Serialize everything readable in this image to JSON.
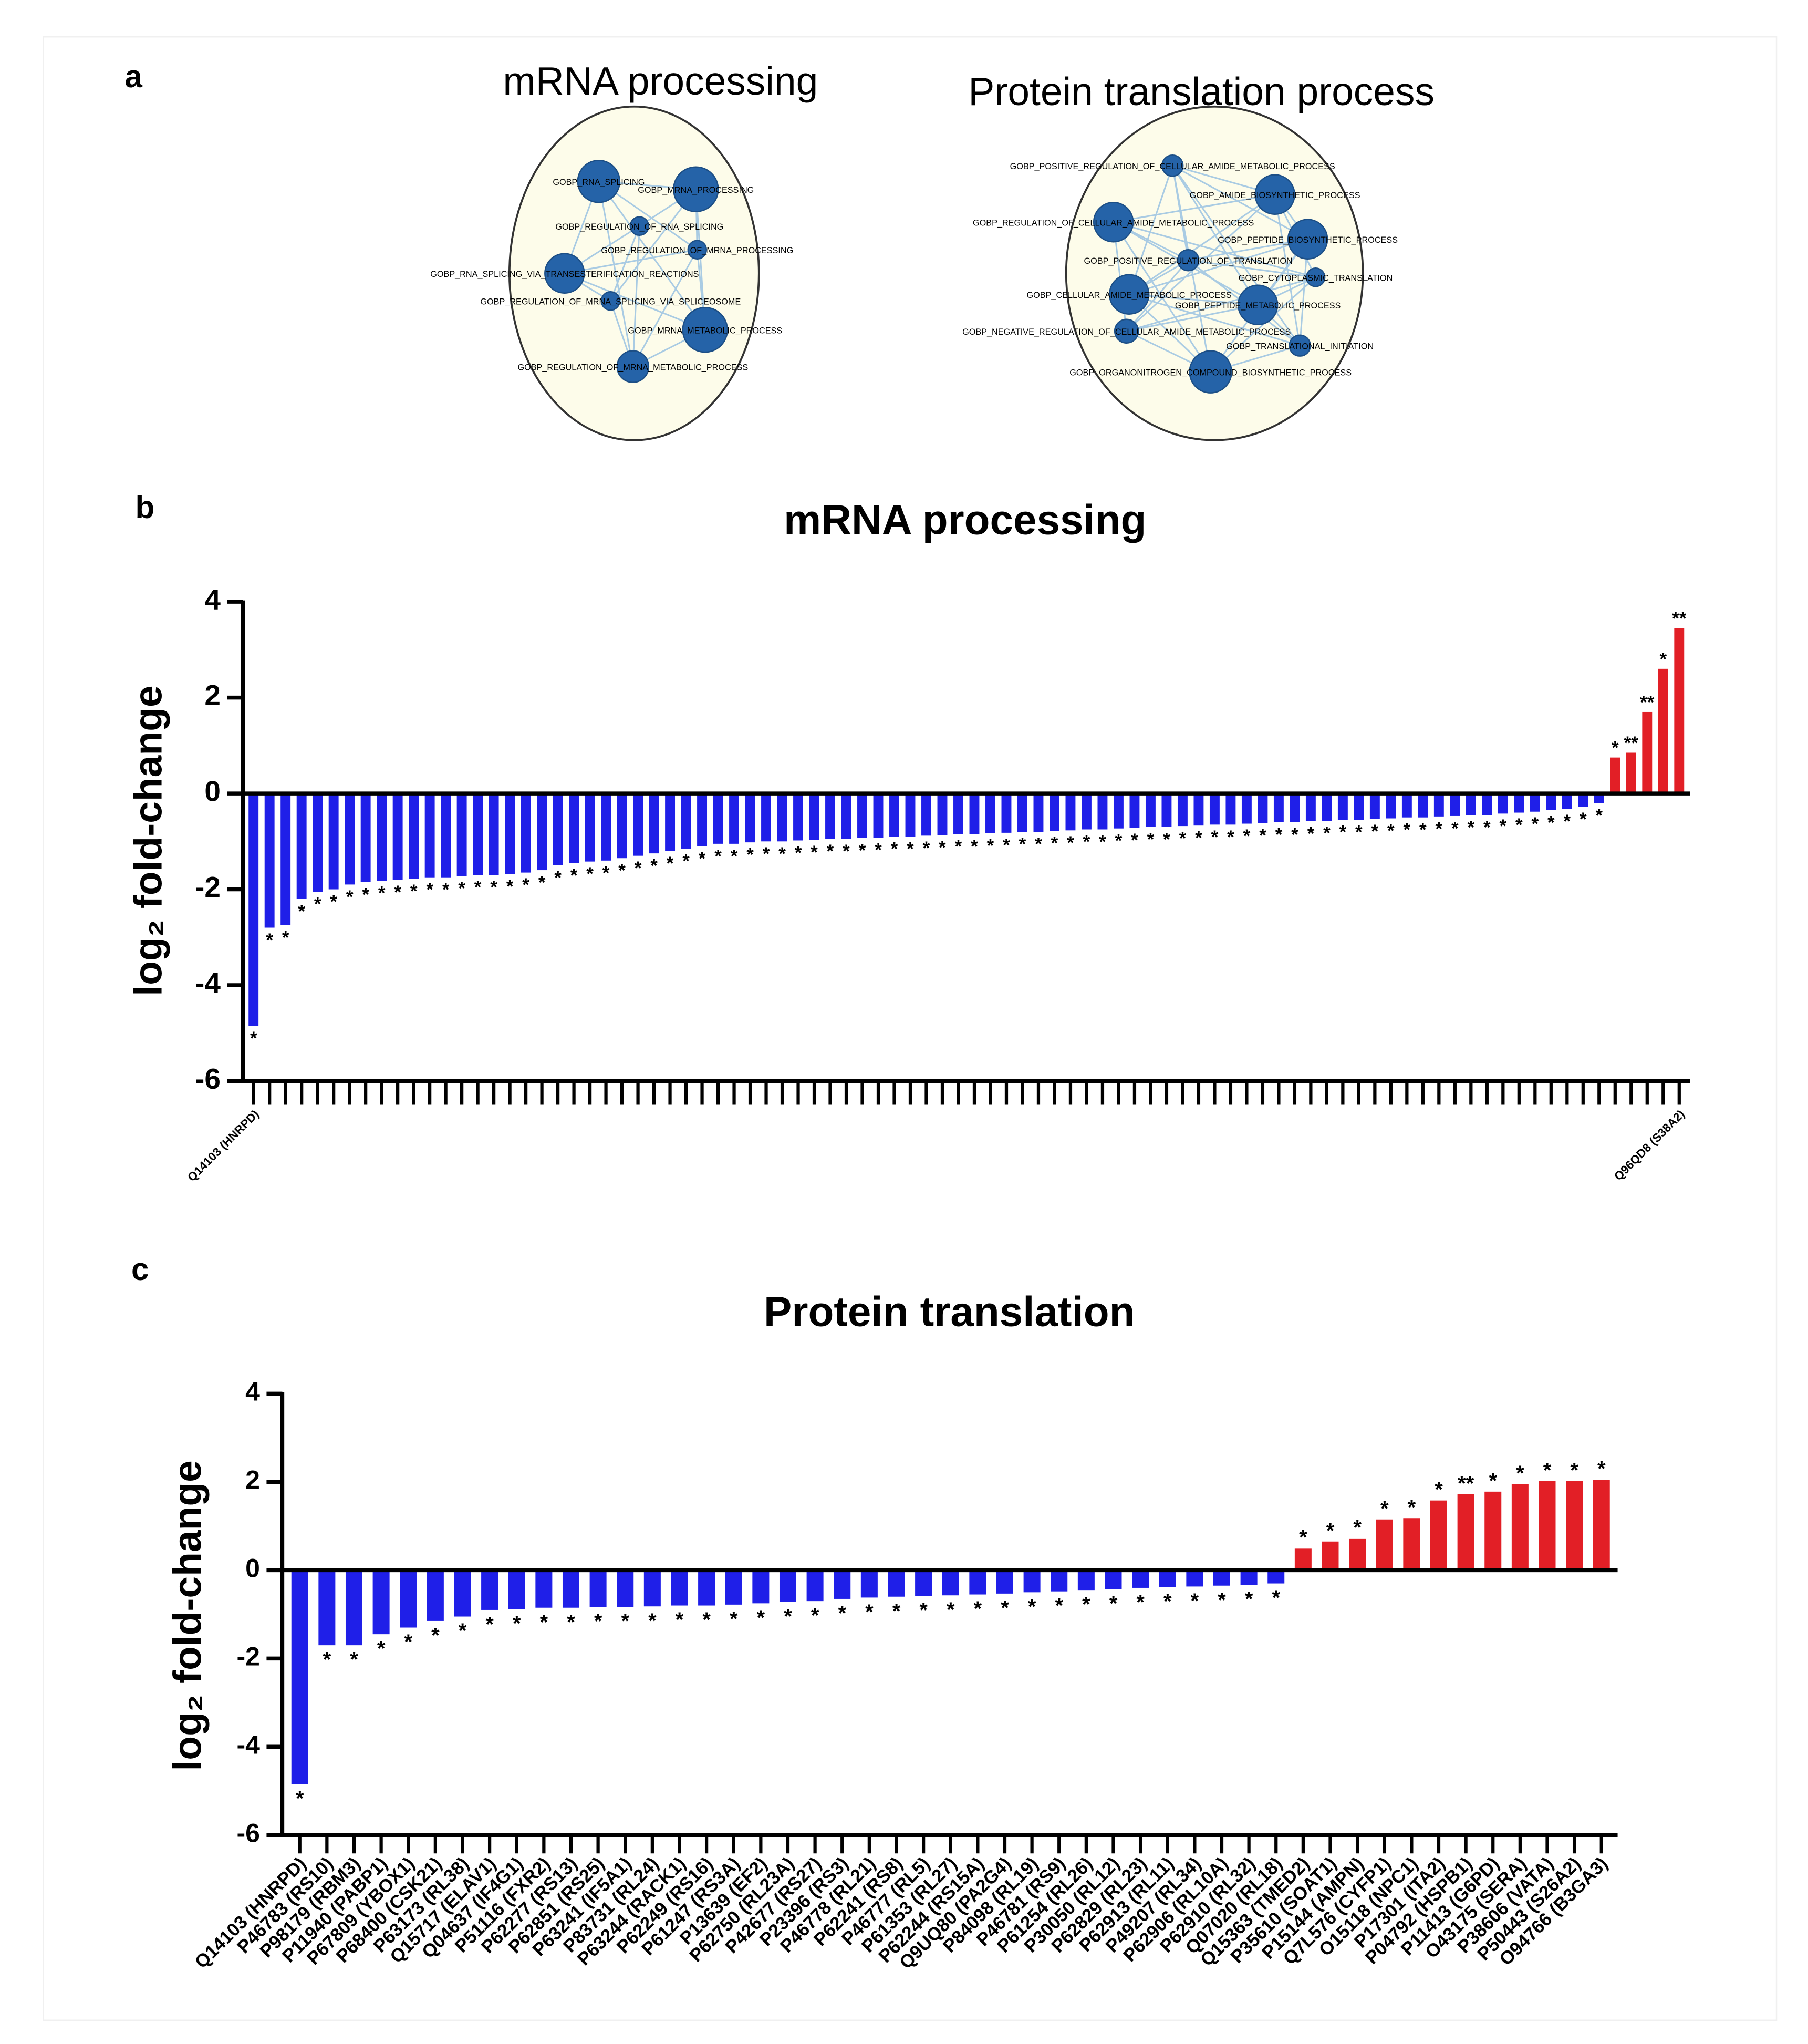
{
  "panel_labels": [
    "a",
    "b",
    "c"
  ],
  "networks": [
    {
      "title": "mRNA processing",
      "nodes": [
        {
          "label": "GOBP_RNA_SPLICING"
        },
        {
          "label": "GOBP_MRNA_PROCESSING"
        },
        {
          "label": "GOBP_REGULATION_OF_RNA_SPLICING"
        },
        {
          "label": "GOBP_REGULATION_OF_MRNA_PROCESSING"
        },
        {
          "label": "GOBP_RNA_SPLICING_VIA_TRANSESTERIFICATION_REACTIONS"
        },
        {
          "label": "GOBP_REGULATION_OF_MRNA_SPLICING_VIA_SPLICEOSOME"
        },
        {
          "label": "GOBP_MRNA_METABOLIC_PROCESS"
        },
        {
          "label": "GOBP_REGULATION_OF_MRNA_METABOLIC_PROCESS"
        }
      ]
    },
    {
      "title": "Protein translation process",
      "nodes": [
        {
          "label": "GOBP_POSITIVE_REGULATION_OF_CELLULAR_AMIDE_METABOLIC_PROCESS"
        },
        {
          "label": "GOBP_AMIDE_BIOSYNTHETIC_PROCESS"
        },
        {
          "label": "GOBP_REGULATION_OF_CELLULAR_AMIDE_METABOLIC_PROCESS"
        },
        {
          "label": "GOBP_PEPTIDE_BIOSYNTHETIC_PROCESS"
        },
        {
          "label": "GOBP_POSITIVE_REGULATION_OF_TRANSLATION"
        },
        {
          "label": "GOBP_CYTOPLASMIC_TRANSLATION"
        },
        {
          "label": "GOBP_CELLULAR_AMIDE_METABOLIC_PROCESS"
        },
        {
          "label": "GOBP_PEPTIDE_METABOLIC_PROCESS"
        },
        {
          "label": "GOBP_NEGATIVE_REGULATION_OF_CELLULAR_AMIDE_METABOLIC_PROCESS"
        },
        {
          "label": "GOBP_TRANSLATIONAL_INITIATION"
        },
        {
          "label": "GOBP_ORGANONITROGEN_COMPOUND_BIOSYNTHETIC_PROCESS"
        }
      ]
    }
  ],
  "chart_data": [
    {
      "type": "bar",
      "title": "mRNA processing",
      "y_label": "log₂ fold-change",
      "negative_color": "#1f1fe8",
      "positive_color": "#e21f26",
      "ylim": [
        -6,
        4
      ],
      "yticks": [
        -6,
        -4,
        -2,
        0,
        2,
        4
      ],
      "categories": [
        "Q14103 (HNRPD)",
        null,
        null,
        null,
        null,
        null,
        null,
        null,
        null,
        null,
        null,
        null,
        null,
        null,
        null,
        null,
        null,
        null,
        null,
        null,
        null,
        null,
        null,
        null,
        null,
        null,
        null,
        null,
        null,
        null,
        null,
        null,
        null,
        null,
        null,
        null,
        null,
        null,
        null,
        null,
        null,
        null,
        null,
        null,
        null,
        null,
        null,
        null,
        null,
        null,
        null,
        null,
        null,
        null,
        null,
        null,
        null,
        null,
        null,
        null,
        null,
        null,
        null,
        null,
        null,
        null,
        null,
        null,
        null,
        null,
        null,
        null,
        null,
        null,
        null,
        null,
        null,
        null,
        null,
        null,
        null,
        null,
        null,
        null,
        null,
        null,
        null,
        null,
        null,
        "Q96QD8 (S38A2)"
      ],
      "values": [
        -4.85,
        -2.8,
        -2.75,
        -2.2,
        -2.05,
        -2.0,
        -1.9,
        -1.85,
        -1.82,
        -1.8,
        -1.78,
        -1.75,
        -1.75,
        -1.72,
        -1.7,
        -1.7,
        -1.68,
        -1.65,
        -1.6,
        -1.5,
        -1.45,
        -1.42,
        -1.4,
        -1.35,
        -1.3,
        -1.25,
        -1.2,
        -1.15,
        -1.1,
        -1.05,
        -1.05,
        -1.02,
        -1.0,
        -1.0,
        -0.98,
        -0.97,
        -0.95,
        -0.95,
        -0.93,
        -0.92,
        -0.9,
        -0.9,
        -0.88,
        -0.87,
        -0.85,
        -0.85,
        -0.83,
        -0.82,
        -0.8,
        -0.8,
        -0.78,
        -0.77,
        -0.75,
        -0.75,
        -0.73,
        -0.72,
        -0.7,
        -0.7,
        -0.68,
        -0.67,
        -0.65,
        -0.65,
        -0.63,
        -0.62,
        -0.6,
        -0.6,
        -0.58,
        -0.57,
        -0.55,
        -0.55,
        -0.53,
        -0.52,
        -0.5,
        -0.5,
        -0.48,
        -0.47,
        -0.45,
        -0.45,
        -0.42,
        -0.4,
        -0.38,
        -0.35,
        -0.32,
        -0.28,
        -0.2,
        0.75,
        0.85,
        1.7,
        2.6,
        3.45
      ],
      "significance": [
        "*",
        "*",
        "*",
        "*",
        "*",
        "*",
        "*",
        "*",
        "*",
        "*",
        "*",
        "*",
        "*",
        "*",
        "*",
        "*",
        "*",
        "*",
        "*",
        "*",
        "*",
        "*",
        "*",
        "*",
        "*",
        "*",
        "*",
        "*",
        "*",
        "*",
        "*",
        "*",
        "*",
        "*",
        "*",
        "*",
        "*",
        "*",
        "*",
        "*",
        "*",
        "*",
        "*",
        "*",
        "*",
        "*",
        "*",
        "*",
        "*",
        "*",
        "*",
        "*",
        "*",
        "*",
        "*",
        "*",
        "*",
        "*",
        "*",
        "*",
        "*",
        "*",
        "*",
        "*",
        "*",
        "*",
        "*",
        "*",
        "*",
        "*",
        "*",
        "*",
        "*",
        "*",
        "*",
        "*",
        "*",
        "*",
        "*",
        "*",
        "*",
        "*",
        "*",
        "*",
        "*",
        "*",
        "**",
        "**",
        "*",
        "**"
      ]
    },
    {
      "type": "bar",
      "title": "Protein translation",
      "y_label": "log₂ fold-change",
      "negative_color": "#1f1fe8",
      "positive_color": "#e21f26",
      "ylim": [
        -6,
        4
      ],
      "yticks": [
        -6,
        -4,
        -2,
        0,
        2,
        4
      ],
      "categories": [
        "Q14103 (HNRPD)",
        "P46783 (RS10)",
        "P98179 (RBM3)",
        "P11940 (PABP1)",
        "P67809 (YBOX1)",
        "P68400 (CSK21)",
        "P63173 (RL38)",
        "Q15717 (ELAV1)",
        "Q04637 (IF4G1)",
        "P51116 (FXR2)",
        "P62277 (RS13)",
        "P62851 (RS25)",
        "P63241 (IF5A1)",
        "P83731 (RL24)",
        "P63244 (RACK1)",
        "P62249 (RS16)",
        "P61247 (RS3A)",
        "P13639 (EF2)",
        "P62750 (RL23A)",
        "P42677 (RS27)",
        "P23396 (RS3)",
        "P46778 (RL21)",
        "P62241 (RS8)",
        "P46777 (RL5)",
        "P61353 (RL27)",
        "P62244 (RS15A)",
        "Q9UQ80 (PA2G4)",
        "P84098 (RL19)",
        "P46781 (RS9)",
        "P61254 (RL26)",
        "P30050 (RL12)",
        "P62829 (RL23)",
        "P62913 (RL11)",
        "P49207 (RL34)",
        "P62906 (RL10A)",
        "P62910 (RL32)",
        "Q07020 (RL18)",
        "Q15363 (TMED2)",
        "P35610 (SOAT1)",
        "P15144 (AMPN)",
        "Q7L576 (CYFP1)",
        "O15118 (NPC1)",
        "P17301 (ITA2)",
        "P04792 (HSPB1)",
        "P11413 (G6PD)",
        "O43175 (SERA)",
        "P38606 (VATA)",
        "P50443 (S26A2)",
        "O94766 (B3GA3)"
      ],
      "values": [
        -4.85,
        -1.7,
        -1.7,
        -1.45,
        -1.3,
        -1.15,
        -1.05,
        -0.9,
        -0.88,
        -0.85,
        -0.85,
        -0.83,
        -0.83,
        -0.82,
        -0.8,
        -0.8,
        -0.78,
        -0.75,
        -0.72,
        -0.7,
        -0.65,
        -0.62,
        -0.6,
        -0.58,
        -0.57,
        -0.55,
        -0.53,
        -0.5,
        -0.48,
        -0.45,
        -0.43,
        -0.4,
        -0.38,
        -0.37,
        -0.35,
        -0.33,
        -0.3,
        0.5,
        0.65,
        0.72,
        1.15,
        1.18,
        1.58,
        1.72,
        1.78,
        1.95,
        2.02,
        2.02,
        2.05
      ],
      "significance": [
        "*",
        "*",
        "*",
        "*",
        "*",
        "*",
        "*",
        "*",
        "*",
        "*",
        "*",
        "*",
        "*",
        "*",
        "*",
        "*",
        "*",
        "*",
        "*",
        "*",
        "*",
        "*",
        "*",
        "*",
        "*",
        "*",
        "*",
        "*",
        "*",
        "*",
        "*",
        "*",
        "*",
        "*",
        "*",
        "*",
        "*",
        "*",
        "*",
        "*",
        "*",
        "*",
        "*",
        "**",
        "*",
        "*",
        "*",
        "*",
        "*"
      ]
    }
  ]
}
